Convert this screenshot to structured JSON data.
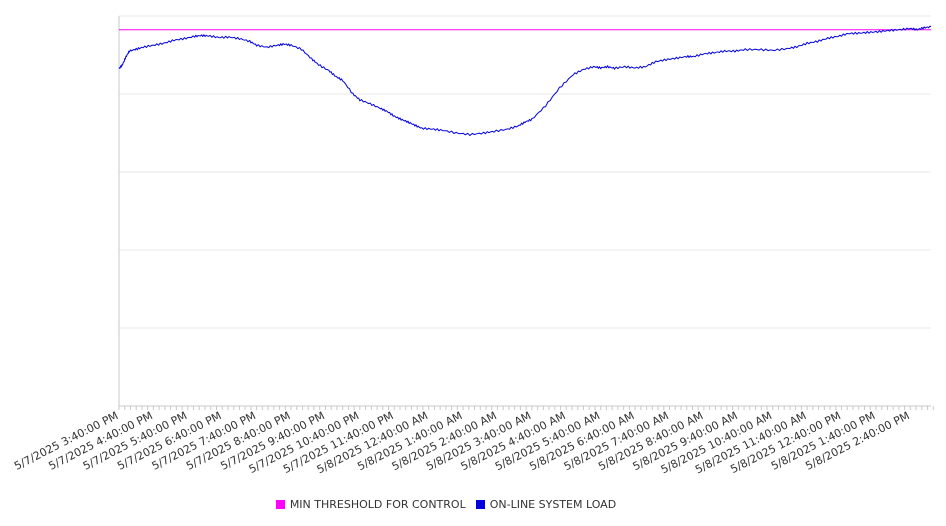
{
  "chart_data": {
    "type": "line",
    "title": "",
    "xlabel": "",
    "ylabel": "",
    "y_tick_labels_visible": false,
    "grid": "horizontal",
    "legend_position": "bottom",
    "ylim": [
      0,
      100
    ],
    "x_tick_labels": [
      "5/7/2025 3:40:00 PM",
      "5/7/2025 4:40:00 PM",
      "5/7/2025 5:40:00 PM",
      "5/7/2025 6:40:00 PM",
      "5/7/2025 7:40:00 PM",
      "5/7/2025 8:40:00 PM",
      "5/7/2025 9:40:00 PM",
      "5/7/2025 10:40:00 PM",
      "5/7/2025 11:40:00 PM",
      "5/8/2025 12:40:00 AM",
      "5/8/2025 1:40:00 AM",
      "5/8/2025 2:40:00 AM",
      "5/8/2025 3:40:00 AM",
      "5/8/2025 4:40:00 AM",
      "5/8/2025 5:40:00 AM",
      "5/8/2025 6:40:00 AM",
      "5/8/2025 7:40:00 AM",
      "5/8/2025 8:40:00 AM",
      "5/8/2025 9:40:00 AM",
      "5/8/2025 10:40:00 AM",
      "5/8/2025 11:40:00 AM",
      "5/8/2025 12:40:00 PM",
      "5/8/2025 1:40:00 PM",
      "5/8/2025 2:40:00 PM"
    ],
    "series": [
      {
        "name": "MIN THRESHOLD FOR CONTROL",
        "color": "#ff00ff",
        "x": [
          0,
          23.6
        ],
        "values": [
          96.5,
          96.5
        ]
      },
      {
        "name": "ON-LINE SYSTEM LOAD",
        "color": "#0000dd",
        "x": [
          0,
          0.1,
          0.2,
          0.3,
          0.5,
          0.7,
          1.0,
          1.3,
          1.6,
          1.9,
          2.2,
          2.4,
          2.6,
          2.9,
          3.2,
          3.5,
          3.8,
          4.0,
          4.3,
          4.6,
          4.8,
          5.0,
          5.3,
          5.6,
          5.8,
          6.1,
          6.3,
          6.5,
          6.8,
          7.0,
          7.3,
          7.6,
          7.8,
          8.0,
          8.2,
          8.4,
          8.6,
          8.8,
          9.1,
          9.4,
          9.8,
          10.2,
          10.6,
          10.9,
          11.3,
          11.6,
          11.8,
          12.0,
          12.4,
          12.8,
          13.2,
          13.5,
          13.8,
          14.0,
          14.2,
          14.4,
          14.7,
          15.0,
          15.3,
          15.6,
          15.9,
          16.2,
          16.5,
          16.7,
          17.0,
          17.3,
          17.6,
          17.9,
          18.2,
          18.6,
          19.0,
          19.4,
          19.7,
          20.0,
          20.3,
          20.6,
          20.9,
          21.2,
          21.5,
          21.8,
          22.1,
          22.4,
          22.7,
          23.0,
          23.2,
          23.4,
          23.6
        ],
        "values": [
          86.5,
          87.5,
          89.5,
          91,
          91.5,
          92,
          92.5,
          93,
          93.8,
          94.2,
          94.8,
          95,
          94.9,
          94.5,
          94.6,
          94.2,
          93.5,
          92.5,
          92.0,
          92.5,
          92.8,
          92.5,
          91.5,
          89,
          87.5,
          86,
          84.5,
          83.5,
          80.0,
          78.5,
          77.5,
          76.3,
          75.5,
          74.3,
          73.5,
          72.8,
          72.0,
          71.2,
          71.0,
          70.7,
          70.0,
          69.6,
          70.0,
          70.4,
          71.0,
          71.8,
          72.8,
          73.5,
          77,
          81.5,
          85.0,
          86.3,
          87.0,
          86.7,
          87.0,
          86.6,
          87.0,
          86.7,
          87.0,
          88.3,
          88.8,
          89.2,
          89.6,
          89.6,
          90.3,
          90.6,
          91.0,
          91.0,
          91.4,
          91.4,
          91.2,
          91.6,
          92.1,
          93.0,
          93.5,
          94.3,
          94.8,
          95.5,
          95.6,
          95.8,
          96.0,
          96.3,
          96.5,
          96.8,
          96.5,
          97.0,
          97.2
        ]
      }
    ]
  }
}
